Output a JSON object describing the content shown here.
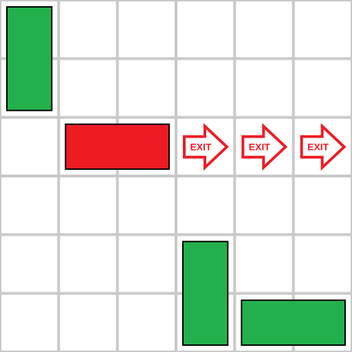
{
  "board": {
    "rows": 6,
    "cols": 6,
    "grid_color": "#c8c8c8",
    "background": "#ffffff"
  },
  "colors": {
    "target": "#ed1c24",
    "blocker": "#22b14c",
    "outline": "#000000",
    "exit_arrow": "#ed1c24"
  },
  "blocks": [
    {
      "id": "target-car",
      "kind": "target",
      "row": 2,
      "col": 1,
      "length": 2,
      "orientation": "horizontal"
    },
    {
      "id": "blocker-1",
      "kind": "blocker",
      "row": 0,
      "col": 0,
      "length": 2,
      "orientation": "vertical"
    },
    {
      "id": "blocker-2",
      "kind": "blocker",
      "row": 4,
      "col": 3,
      "length": 2,
      "orientation": "vertical"
    },
    {
      "id": "blocker-3",
      "kind": "blocker",
      "row": 5,
      "col": 4,
      "length": 2,
      "orientation": "horizontal"
    }
  ],
  "exit_markers": [
    {
      "row": 2,
      "col": 3,
      "label": "EXIT",
      "icon": "right-arrow-icon"
    },
    {
      "row": 2,
      "col": 4,
      "label": "EXIT",
      "icon": "right-arrow-icon"
    },
    {
      "row": 2,
      "col": 5,
      "label": "EXIT",
      "icon": "right-arrow-icon"
    }
  ]
}
